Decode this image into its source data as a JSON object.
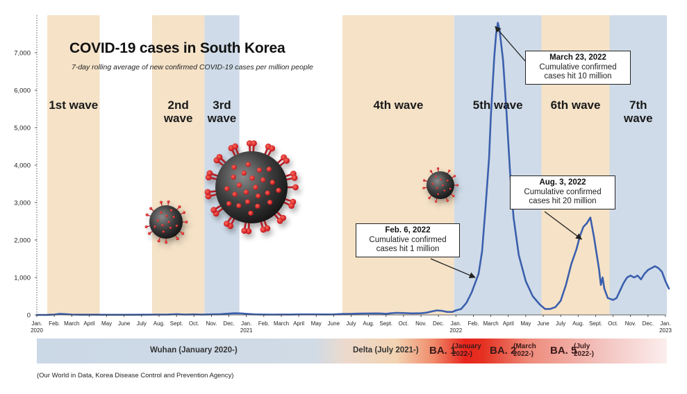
{
  "colors": {
    "wave_band_a": "#f5e2c7",
    "wave_band_b": "#cfdbe8",
    "line": "#3b5fad",
    "arrow": "#222222",
    "variant_wuhan": "#cbd8e6",
    "variant_ba1": "#e8241c",
    "variant_ba5": "#f2c2c2"
  },
  "chart_data": {
    "type": "line",
    "title": "COVID-19 cases in South Korea",
    "subtitle": "7-day rolling average of new confirmed COVID-19 cases per million people",
    "ylim": [
      0,
      8000
    ],
    "yticks": [
      0,
      1000,
      2000,
      3000,
      4000,
      5000,
      6000,
      7000
    ],
    "ytick_labels": [
      "0",
      "1,000",
      "2,000",
      "3,000",
      "4,000",
      "5,000",
      "6,000",
      "7,000"
    ],
    "xlim_months": [
      0,
      36
    ],
    "xticks": [
      {
        "m": 0,
        "label": "Jan.",
        "year": "2020"
      },
      {
        "m": 1,
        "label": "Feb."
      },
      {
        "m": 2,
        "label": "March"
      },
      {
        "m": 3,
        "label": "April"
      },
      {
        "m": 4,
        "label": "May"
      },
      {
        "m": 5,
        "label": "June"
      },
      {
        "m": 6,
        "label": "July"
      },
      {
        "m": 7,
        "label": "Aug."
      },
      {
        "m": 8,
        "label": "Sept."
      },
      {
        "m": 9,
        "label": "Oct."
      },
      {
        "m": 10,
        "label": "Nov."
      },
      {
        "m": 11,
        "label": "Dec."
      },
      {
        "m": 12,
        "label": "Jan.",
        "year": "2021"
      },
      {
        "m": 13,
        "label": "Feb."
      },
      {
        "m": 14,
        "label": "March"
      },
      {
        "m": 15,
        "label": "April"
      },
      {
        "m": 16,
        "label": "May"
      },
      {
        "m": 17,
        "label": "June"
      },
      {
        "m": 18,
        "label": "July"
      },
      {
        "m": 19,
        "label": "Aug."
      },
      {
        "m": 20,
        "label": "Sept."
      },
      {
        "m": 21,
        "label": "Oct."
      },
      {
        "m": 22,
        "label": "Nov."
      },
      {
        "m": 23,
        "label": "Dec."
      },
      {
        "m": 24,
        "label": "Jan.",
        "year": "2022"
      },
      {
        "m": 25,
        "label": "Feb."
      },
      {
        "m": 26,
        "label": "March"
      },
      {
        "m": 27,
        "label": "April"
      },
      {
        "m": 28,
        "label": "May"
      },
      {
        "m": 29,
        "label": "June"
      },
      {
        "m": 30,
        "label": "July"
      },
      {
        "m": 31,
        "label": "Aug."
      },
      {
        "m": 32,
        "label": "Sept."
      },
      {
        "m": 33,
        "label": "Oct."
      },
      {
        "m": 34,
        "label": "Nov."
      },
      {
        "m": 35,
        "label": "Dec."
      },
      {
        "m": 36,
        "label": "Jan.",
        "year": "2023"
      }
    ],
    "waves": [
      {
        "label": "1st wave",
        "start": 0.6,
        "end": 3.6,
        "color": "a"
      },
      {
        "label": "2nd wave",
        "start": 6.6,
        "end": 9.6,
        "color": "a"
      },
      {
        "label": "3rd wave",
        "start": 9.6,
        "end": 11.6,
        "color": "b"
      },
      {
        "label": "4th wave",
        "start": 17.5,
        "end": 23.9,
        "color": "a"
      },
      {
        "label": "5th wave",
        "start": 23.9,
        "end": 28.9,
        "color": "b"
      },
      {
        "label": "6th wave",
        "start": 28.9,
        "end": 32.8,
        "color": "a"
      },
      {
        "label": "7th wave",
        "start": 32.8,
        "end": 36.2,
        "color": "b"
      }
    ],
    "series": [
      {
        "x": [
          0,
          0.6,
          1.0,
          1.3,
          1.7,
          2.0,
          2.5,
          3,
          3.5,
          4,
          5,
          6,
          7,
          7.5,
          8,
          8.5,
          9,
          9.5,
          10,
          10.5,
          11,
          11.3,
          11.7,
          12,
          12.5,
          13,
          13.5,
          14,
          14.5,
          15,
          15.5,
          16,
          16.5,
          17,
          17.5,
          18,
          18.5,
          19,
          19.5,
          19.8,
          20,
          20.3,
          20.6,
          21,
          21.5,
          22,
          22.3,
          22.6,
          22.9,
          23.2,
          23.5,
          23.8,
          24,
          24.3,
          24.6,
          24.9,
          25.1,
          25.3,
          25.5,
          25.7,
          25.9,
          26.0,
          26.1,
          26.2,
          26.3,
          26.4,
          26.5,
          26.7,
          26.9,
          27.1,
          27.3,
          27.6,
          28,
          28.4,
          28.8,
          29.1,
          29.4,
          29.7,
          30,
          30.3,
          30.6,
          30.9,
          31.1,
          31.3,
          31.5,
          31.7,
          31.9,
          32.1,
          32.2,
          32.3,
          32.4,
          32.5,
          32.7,
          33,
          33.2,
          33.4,
          33.6,
          33.8,
          34,
          34.2,
          34.4,
          34.6,
          34.8,
          35,
          35.2,
          35.4,
          35.6,
          35.8,
          36,
          36.2
        ],
        "y": [
          0,
          2,
          10,
          30,
          20,
          10,
          5,
          5,
          5,
          3,
          3,
          5,
          10,
          12,
          20,
          10,
          15,
          10,
          15,
          20,
          35,
          45,
          40,
          30,
          15,
          12,
          10,
          12,
          12,
          14,
          15,
          14,
          13,
          15,
          25,
          30,
          35,
          38,
          40,
          35,
          30,
          45,
          55,
          50,
          40,
          45,
          60,
          90,
          120,
          110,
          80,
          80,
          120,
          160,
          320,
          600,
          850,
          1100,
          1700,
          2900,
          4200,
          5300,
          6100,
          6900,
          7500,
          7800,
          7600,
          6800,
          5400,
          3800,
          2600,
          1600,
          900,
          500,
          280,
          160,
          160,
          210,
          380,
          800,
          1350,
          1750,
          2100,
          2350,
          2450,
          2600,
          2100,
          1500,
          1200,
          800,
          1000,
          700,
          450,
          400,
          450,
          650,
          850,
          1000,
          1050,
          1000,
          1050,
          950,
          1100,
          1200,
          1250,
          1300,
          1250,
          1150,
          900,
          700
        ]
      }
    ]
  },
  "annotations": [
    {
      "date": "Feb. 6, 2022",
      "line1": "Cumulative confirmed",
      "line2": "cases hit 1 million",
      "target": {
        "m": 25.1,
        "v": 1000
      }
    },
    {
      "date": "March 23, 2022",
      "line1": "Cumulative confirmed",
      "line2": "cases hit 10 million",
      "target": {
        "m": 26.25,
        "v": 7700
      }
    },
    {
      "date": "Aug. 3, 2022",
      "line1": "Cumulative confirmed",
      "line2": "cases hit 20 million",
      "target": {
        "m": 31.2,
        "v": 2020
      }
    }
  ],
  "variants": {
    "wuhan": "Wuhan (January 2020-)",
    "delta": "Delta (July 2021-)",
    "ba1_name": "BA. 1",
    "ba1_date_l1": "(January",
    "ba1_date_l2": "2022-)",
    "ba2_name": "BA. 2",
    "ba2_date_l1": "(March",
    "ba2_date_l2": "2022-)",
    "ba5_name": "BA. 5",
    "ba5_date_l1": "(July",
    "ba5_date_l2": "2022-)"
  },
  "source": "(Our World in Data, Korea Disease Control and Prevention Agency)"
}
